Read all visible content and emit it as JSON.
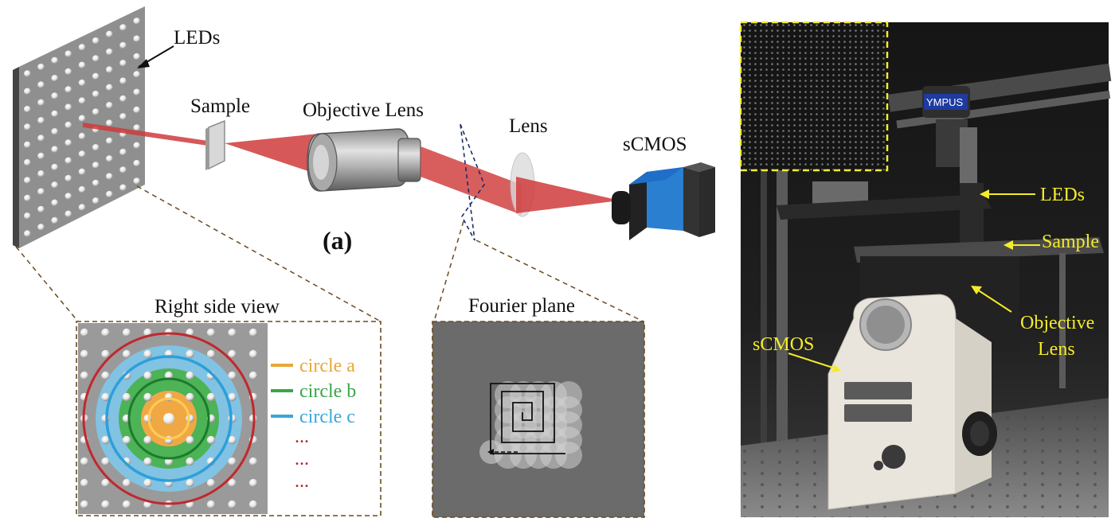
{
  "labels": {
    "leds": "LEDs",
    "sample": "Sample",
    "objective_lens": "Objective Lens",
    "lens": "Lens",
    "scmos": "sCMOS",
    "panel_a": "(a)",
    "right_side_view": "Right side view",
    "fourier_plane": "Fourier plane"
  },
  "legend": {
    "circle_a": "circle a",
    "circle_b": "circle b",
    "circle_c": "circle c",
    "ellipsis": "..."
  },
  "photo_labels": {
    "leds": "LEDs",
    "sample": "Sample",
    "objective_line1": "Objective",
    "objective_line2": "Lens",
    "scmos": "sCMOS",
    "brand_top": "YMPUS"
  },
  "colors": {
    "beam": "#cf3b3b",
    "circle_a": "#e6a83a",
    "circle_b": "#3aa54a",
    "circle_c": "#3aa7d9",
    "outer_circle": "#c0282e",
    "ellipsis_dots": "#b02a2a",
    "camera_blue": "#1f6fc9",
    "photo_label": "#f4ec2a",
    "panel_gray": "#9a9a9a"
  }
}
